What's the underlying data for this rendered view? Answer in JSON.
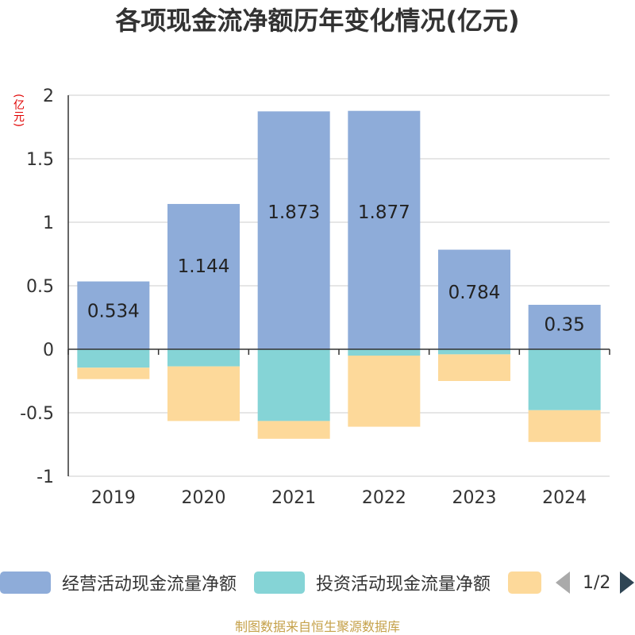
{
  "chart_data": {
    "type": "bar",
    "stacked": true,
    "title": "各项现金流净额历年变化情况(亿元)",
    "ylabel": "(亿元)",
    "categories": [
      "2019",
      "2020",
      "2021",
      "2022",
      "2023",
      "2024"
    ],
    "ylim": [
      -1,
      2
    ],
    "yticks": [
      2,
      1.5,
      1,
      0.5,
      0,
      -0.5,
      -1
    ],
    "ytick_labels": [
      "2",
      "1.5",
      "1",
      "0.5",
      "0",
      "-0.5",
      "-1"
    ],
    "series": [
      {
        "name": "经营活动现金流量净额",
        "color": "#8eacd9",
        "values": [
          0.534,
          1.144,
          1.873,
          1.877,
          0.784,
          0.35
        ],
        "labels": [
          "0.534",
          "1.144",
          "1.873",
          "1.877",
          "0.784",
          "0.35"
        ]
      },
      {
        "name": "投资活动现金流量净额",
        "color": "#85d4d6",
        "values": [
          -0.145,
          -0.135,
          -0.565,
          -0.05,
          -0.04,
          -0.48
        ]
      },
      {
        "name": "",
        "color": "#fdd99a",
        "values": [
          -0.09,
          -0.43,
          -0.14,
          -0.56,
          -0.21,
          -0.25
        ]
      }
    ],
    "grid": true,
    "legend_position": "bottom"
  },
  "legend": {
    "pager_text": "1/2"
  },
  "footer": "制图数据来自恒生聚源数据库"
}
